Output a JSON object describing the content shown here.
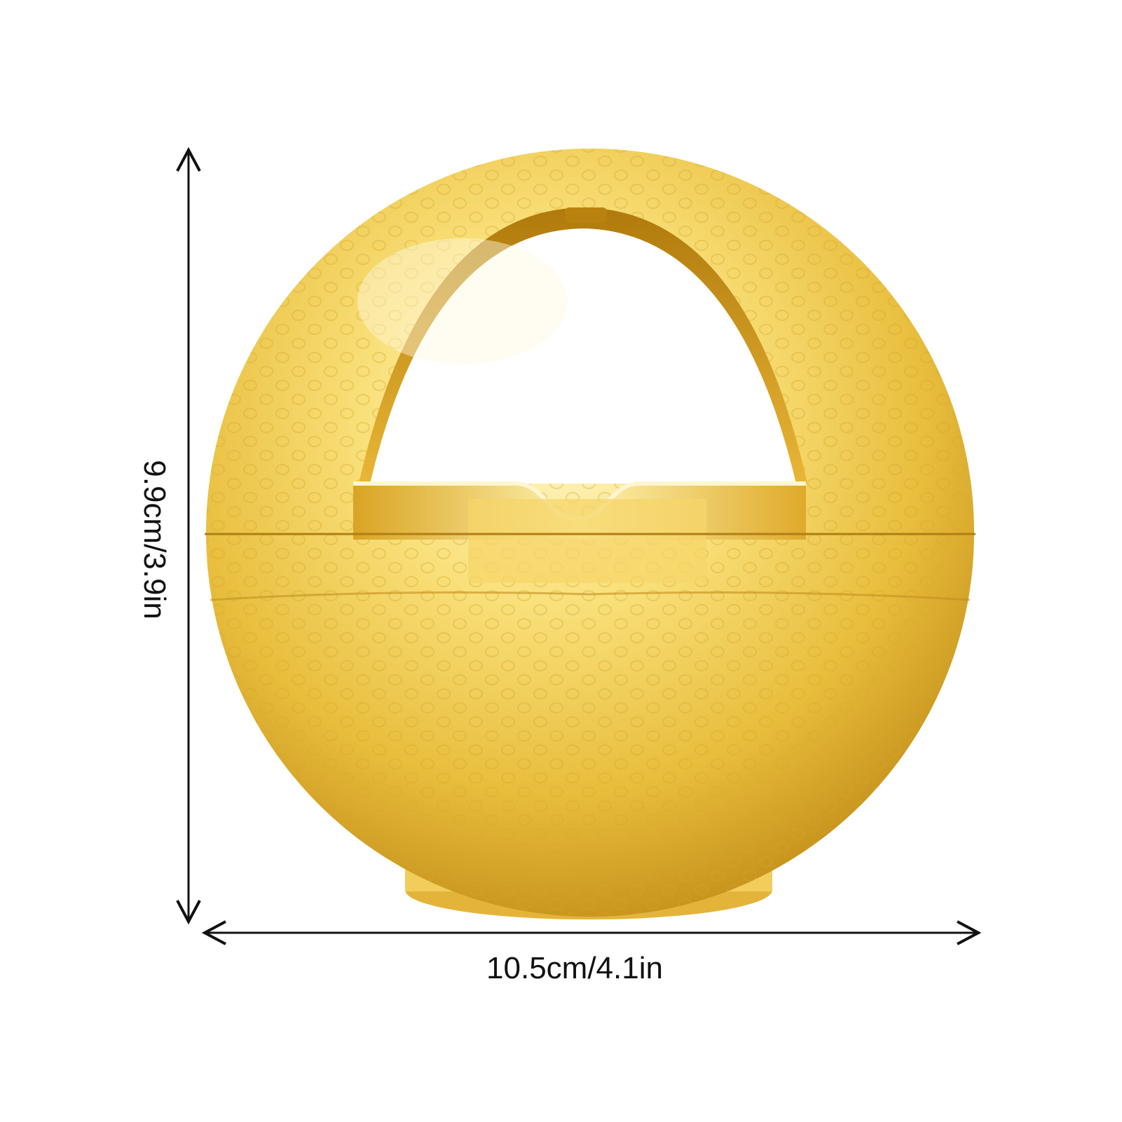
{
  "product": {
    "type": "golf-ball-shaped ashtray with arched cutout",
    "finish": "glossy gold",
    "colors": {
      "base": "#f0c84a",
      "highlight": "#fff6c4",
      "shadow": "#c9951c",
      "deep": "#a8740e",
      "background": "#ffffff",
      "dimension_lines": "#111111"
    }
  },
  "dimensions": {
    "width_label": "10.5cm/4.1in",
    "height_label": "9.9cm/3.9in"
  },
  "icons": {
    "width_arrow": "double-arrow-horizontal",
    "height_arrow": "double-arrow-vertical"
  }
}
